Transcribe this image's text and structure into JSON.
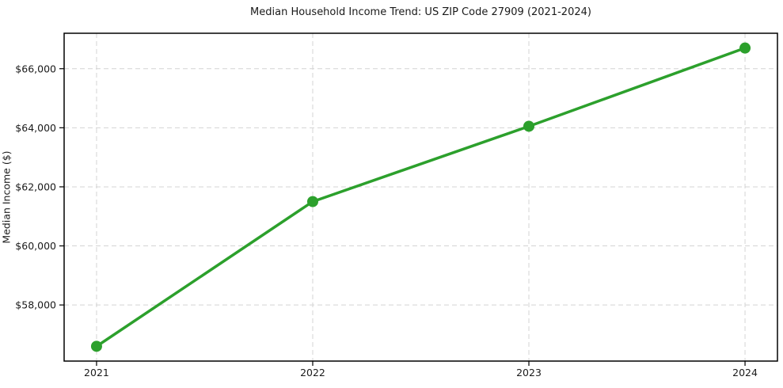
{
  "chart_data": {
    "type": "line",
    "title": "Median Household Income Trend: US ZIP Code 27909 (2021-2024)",
    "xlabel": "",
    "ylabel": "Median Income ($)",
    "series": [
      {
        "name": "Median household income",
        "x": [
          2021,
          2022,
          2023,
          2024
        ],
        "values": [
          56600,
          61500,
          64050,
          66700
        ]
      }
    ],
    "x_ticks": [
      {
        "value": 2021,
        "label": "2021"
      },
      {
        "value": 2022,
        "label": "2022"
      },
      {
        "value": 2023,
        "label": "2023"
      },
      {
        "value": 2024,
        "label": "2024"
      }
    ],
    "y_ticks": [
      {
        "value": 58000,
        "label": "$58,000"
      },
      {
        "value": 60000,
        "label": "$60,000"
      },
      {
        "value": 62000,
        "label": "$62,000"
      },
      {
        "value": 64000,
        "label": "$64,000"
      },
      {
        "value": 66000,
        "label": "$66,000"
      }
    ],
    "xlim": [
      2020.85,
      2024.15
    ],
    "ylim": [
      56100,
      67200
    ],
    "grid": true,
    "grid_style": "dashed",
    "legend": "none",
    "line_color": "#2ca02c",
    "marker": "circle",
    "marker_radius": 7,
    "line_width": 3.5,
    "grid_color": "#d4d4d4",
    "axis_color": "#000000",
    "text_color": "#1a1a1a",
    "background_color": "#ffffff"
  }
}
